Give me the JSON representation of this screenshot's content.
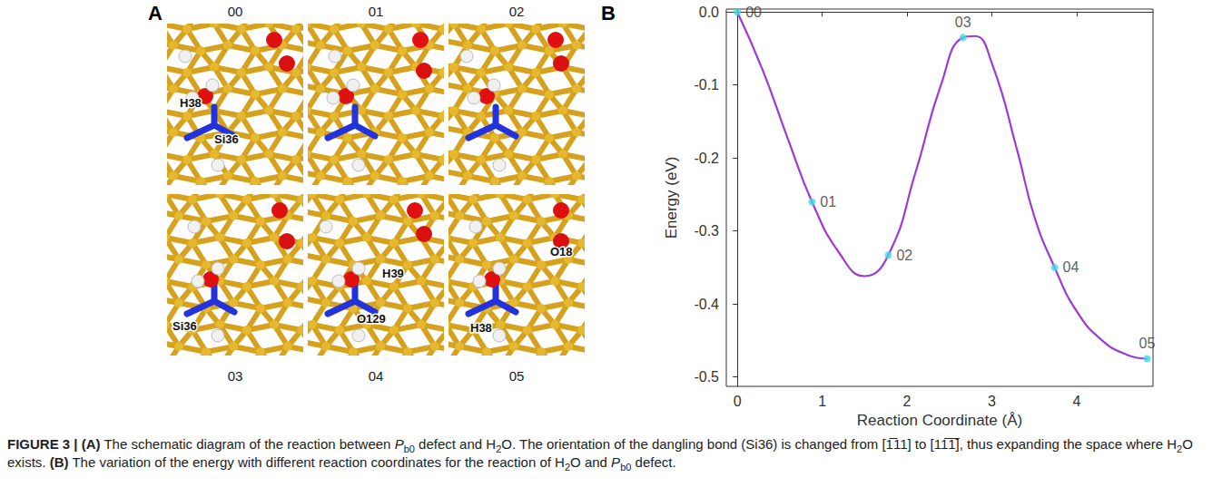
{
  "panel_a": {
    "letter": "A",
    "frames": [
      {
        "label": "00",
        "atoms": [
          "H38",
          "Si36"
        ]
      },
      {
        "label": "01"
      },
      {
        "label": "02"
      },
      {
        "label": "03",
        "atoms": [
          "Si36"
        ]
      },
      {
        "label": "04",
        "atoms": [
          "H39",
          "O129"
        ]
      },
      {
        "label": "05",
        "atoms": [
          "O18",
          "H38"
        ]
      }
    ]
  },
  "chart_data": {
    "letter": "B",
    "type": "line",
    "x_label": "Reaction Coordinate (Å)",
    "y_label": "Energy (eV)",
    "xlim": [
      -0.13,
      4.9
    ],
    "xticks": [
      0,
      1,
      2,
      3,
      4
    ],
    "ylim": [
      -0.513,
      0.004
    ],
    "yticks": [
      {
        "value": 0,
        "label": "0.0"
      },
      -0.1,
      -0.2,
      -0.3,
      -0.4,
      -0.5
    ],
    "grid": false,
    "series": [
      {
        "type": "line",
        "color": "#9d3ad6",
        "x": [
          0,
          0.3,
          0.6,
          0.88,
          1.2,
          1.5,
          1.78,
          2.1,
          2.4,
          2.66,
          2.8,
          3.0,
          3.3,
          3.5,
          3.74,
          4.0,
          4.3,
          4.6,
          4.83
        ],
        "values": [
          0,
          -0.08,
          -0.175,
          -0.26,
          -0.33,
          -0.362,
          -0.333,
          -0.22,
          -0.1,
          -0.035,
          -0.033,
          -0.07,
          -0.19,
          -0.28,
          -0.35,
          -0.41,
          -0.45,
          -0.47,
          -0.475
        ]
      },
      {
        "type": "scatter",
        "color": "#3fd8e8",
        "marker": "circle",
        "x": [
          0,
          0.88,
          1.78,
          2.66,
          3.74,
          4.83
        ],
        "values": [
          0,
          -0.26,
          -0.333,
          -0.035,
          -0.35,
          -0.475
        ],
        "labels": [
          "00",
          "01",
          "02",
          "03",
          "04",
          "05"
        ]
      }
    ]
  },
  "caption": [
    {
      "text": "FIGURE 3 | (A)",
      "style": "bold"
    },
    {
      "text": " The schematic diagram of the reaction between "
    },
    {
      "text": "P",
      "style": "italic"
    },
    {
      "text": "b0",
      "style": "sub"
    },
    {
      "text": " defect and H"
    },
    {
      "text": "2",
      "style": "sub"
    },
    {
      "text": "O. The orientation of the dangling bond (Si36) is changed from [1̅11] to [11̅1̅], thus expanding the space where H"
    },
    {
      "text": "2",
      "style": "sub"
    },
    {
      "text": "O exists. "
    },
    {
      "text": "(B)",
      "style": "bold"
    },
    {
      "text": " The variation of the energy with different reaction coordinates for the reaction of H"
    },
    {
      "text": "2",
      "style": "sub"
    },
    {
      "text": "O and "
    },
    {
      "text": "P",
      "style": "italic"
    },
    {
      "text": "b0",
      "style": "sub"
    },
    {
      "text": " defect."
    }
  ]
}
